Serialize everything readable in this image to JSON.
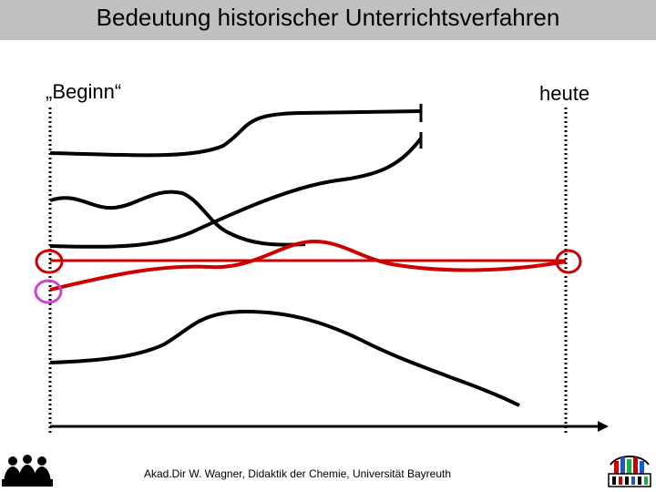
{
  "slide": {
    "title": "Bedeutung historischer Unterrichtsverfahren",
    "label_begin": "„Beginn“",
    "label_today": "heute",
    "footer": "Akad.Dir W. Wagner, Didaktik der Chemie, Universität Bayreuth"
  },
  "colors": {
    "title_bar": "#c0c0c0",
    "curve_black": "#000000",
    "curve_red": "#cc0000",
    "circle_magenta": "#cc44cc"
  },
  "icons": {
    "left_logo": "people-silhouette-icon",
    "right_logo": "didaktik-logo-icon"
  }
}
